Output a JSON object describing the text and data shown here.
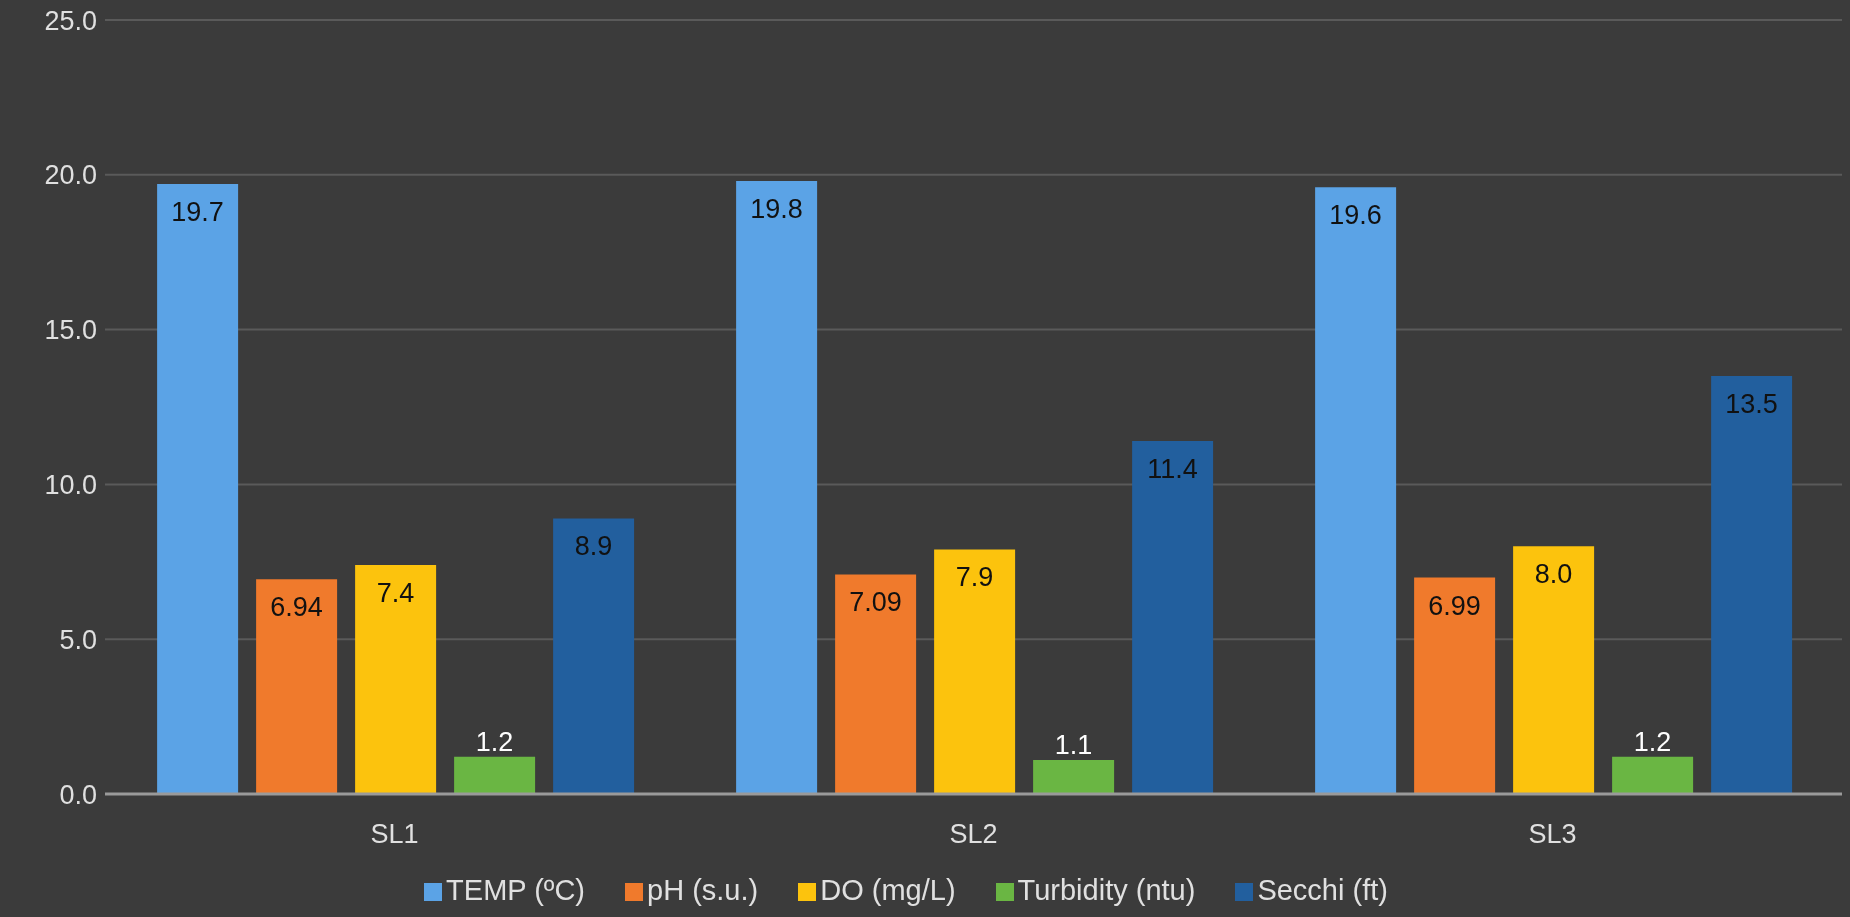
{
  "chart_data": {
    "type": "bar",
    "categories": [
      "SL1",
      "SL2",
      "SL3"
    ],
    "series": [
      {
        "name": "TEMP (ºC)",
        "color": "#5ba3e6",
        "values": [
          19.7,
          19.8,
          19.6
        ],
        "value_labels": [
          "19.7",
          "19.8",
          "19.6"
        ]
      },
      {
        "name": "pH (s.u.)",
        "color": "#f07a2c",
        "values": [
          6.94,
          7.09,
          6.99
        ],
        "value_labels": [
          "6.94",
          "7.09",
          "6.99"
        ]
      },
      {
        "name": "DO (mg/L)",
        "color": "#fcc30d",
        "values": [
          7.4,
          7.9,
          8.0
        ],
        "value_labels": [
          "7.4",
          "7.9",
          "8.0"
        ]
      },
      {
        "name": "Turbidity (ntu)",
        "color": "#6ab643",
        "values": [
          1.2,
          1.1,
          1.2
        ],
        "value_labels": [
          "1.2",
          "1.1",
          "1.2"
        ]
      },
      {
        "name": "Secchi (ft)",
        "color": "#225f9e",
        "values": [
          8.9,
          11.4,
          13.5
        ],
        "value_labels": [
          "8.9",
          "11.4",
          "13.5"
        ]
      }
    ],
    "ylim": [
      0,
      25
    ],
    "yticks": [
      {
        "value": 0,
        "label": "0.0"
      },
      {
        "value": 5,
        "label": "5.0"
      },
      {
        "value": 10,
        "label": "10.0"
      },
      {
        "value": 15,
        "label": "15.0"
      },
      {
        "value": 20,
        "label": "20.0"
      },
      {
        "value": 25,
        "label": "25.0"
      }
    ],
    "grid": "y",
    "legend": "bottom"
  }
}
